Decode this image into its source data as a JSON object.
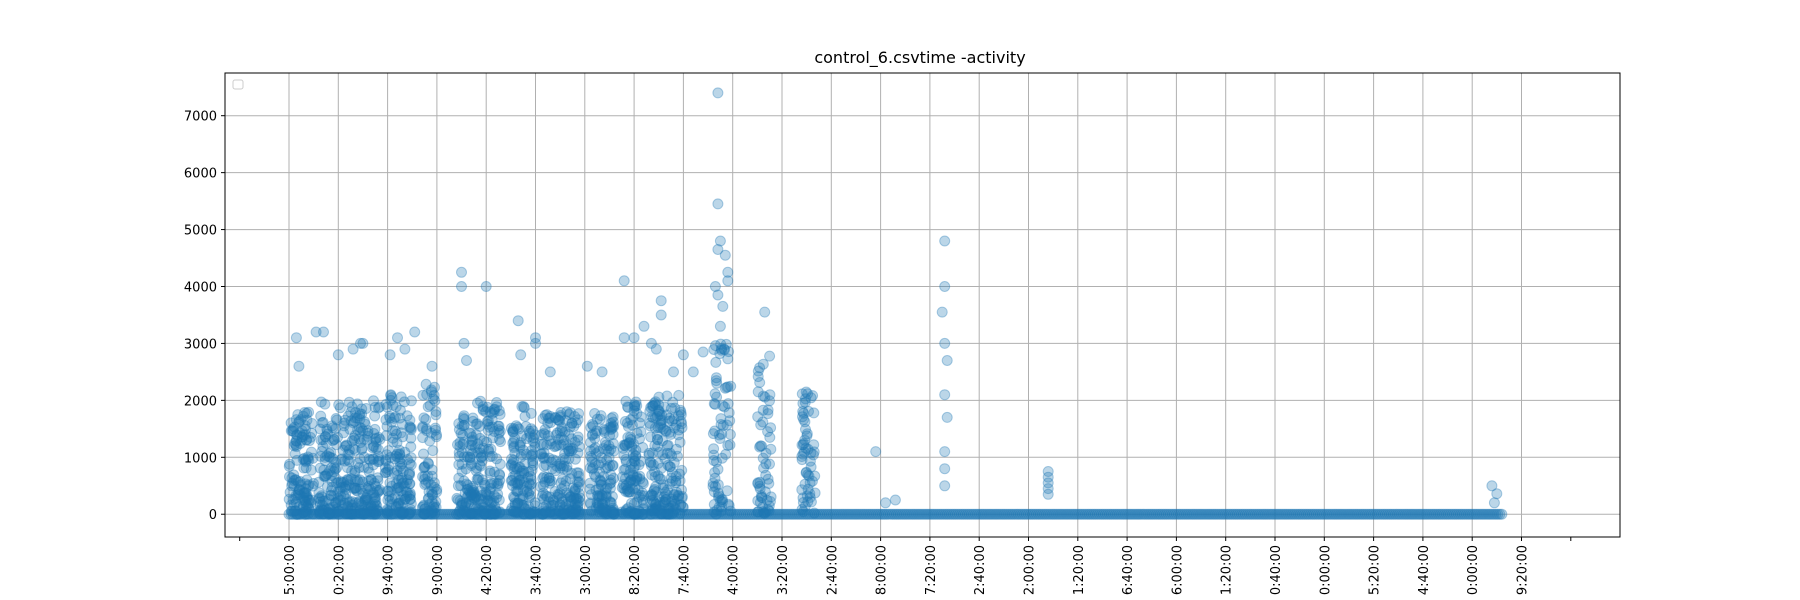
{
  "chart_data": {
    "type": "scatter",
    "title": "control_6.csvtime -activity",
    "xlabel": "",
    "ylabel": "",
    "ylim": [
      -400,
      7750
    ],
    "yticks": [
      0,
      1000,
      2000,
      3000,
      4000,
      5000,
      6000,
      7000
    ],
    "xticks": [
      "5:00:00",
      "0:20:00",
      "9:40:00",
      "9:00:00",
      "4:20:00",
      "3:40:00",
      "3:00:00",
      "8:20:00",
      "7:40:00",
      "4:00:00",
      "3:20:00",
      "2:40:00",
      "8:00:00",
      "7:20:00",
      "2:40:00",
      "2:00:00",
      "1:20:00",
      "6:40:00",
      "6:00:00",
      "1:20:00",
      "0:40:00",
      "0:00:00",
      "5:20:00",
      "4:40:00",
      "0:00:00",
      "9:20:00"
    ],
    "grid": true,
    "legend": "top-left (empty)",
    "series": [
      {
        "color": "#1f77b4",
        "alpha": 0.3,
        "dense_segments": [
          {
            "x_start": 1.0,
            "x_end": 1.5,
            "max": 1800
          },
          {
            "x_start": 1.6,
            "x_end": 2.85,
            "max": 2000
          },
          {
            "x_start": 2.95,
            "x_end": 3.5,
            "max": 2200
          },
          {
            "x_start": 3.7,
            "x_end": 4.0,
            "max": 2300
          },
          {
            "x_start": 4.4,
            "x_end": 4.8,
            "max": 2000
          },
          {
            "x_start": 4.8,
            "x_end": 5.3,
            "max": 2000
          },
          {
            "x_start": 5.5,
            "x_end": 6.0,
            "max": 1900
          },
          {
            "x_start": 6.1,
            "x_end": 6.9,
            "max": 1800
          },
          {
            "x_start": 7.1,
            "x_end": 7.6,
            "max": 1800
          },
          {
            "x_start": 7.75,
            "x_end": 8.2,
            "max": 2000
          },
          {
            "x_start": 8.3,
            "x_end": 9.0,
            "max": 2100
          }
        ],
        "outliers": [
          {
            "x": 1.15,
            "y": 3100
          },
          {
            "x": 1.2,
            "y": 2600
          },
          {
            "x": 1.55,
            "y": 3200
          },
          {
            "x": 1.7,
            "y": 3200
          },
          {
            "x": 2.0,
            "y": 2800
          },
          {
            "x": 2.3,
            "y": 2900
          },
          {
            "x": 2.5,
            "y": 3000
          },
          {
            "x": 2.45,
            "y": 3000
          },
          {
            "x": 3.05,
            "y": 2800
          },
          {
            "x": 3.2,
            "y": 3100
          },
          {
            "x": 3.35,
            "y": 2900
          },
          {
            "x": 3.55,
            "y": 3200
          },
          {
            "x": 3.9,
            "y": 2600
          },
          {
            "x": 4.5,
            "y": 4250
          },
          {
            "x": 4.5,
            "y": 4000
          },
          {
            "x": 4.55,
            "y": 3000
          },
          {
            "x": 4.6,
            "y": 2700
          },
          {
            "x": 5.0,
            "y": 4000
          },
          {
            "x": 5.65,
            "y": 3400
          },
          {
            "x": 5.7,
            "y": 2800
          },
          {
            "x": 6.0,
            "y": 3100
          },
          {
            "x": 6.0,
            "y": 3000
          },
          {
            "x": 6.3,
            "y": 2500
          },
          {
            "x": 7.05,
            "y": 2600
          },
          {
            "x": 7.35,
            "y": 2500
          },
          {
            "x": 7.8,
            "y": 4100
          },
          {
            "x": 7.8,
            "y": 3100
          },
          {
            "x": 8.0,
            "y": 3100
          },
          {
            "x": 8.2,
            "y": 3300
          },
          {
            "x": 8.35,
            "y": 3000
          },
          {
            "x": 8.45,
            "y": 2900
          },
          {
            "x": 8.55,
            "y": 3750
          },
          {
            "x": 8.55,
            "y": 3500
          },
          {
            "x": 8.8,
            "y": 2500
          },
          {
            "x": 9.0,
            "y": 2800
          },
          {
            "x": 9.2,
            "y": 2500
          },
          {
            "x": 9.4,
            "y": 2850
          }
        ],
        "sparse_segments": [
          {
            "x_start": 9.6,
            "x_end": 10.05,
            "max": 3000
          },
          {
            "x_start": 10.5,
            "x_end": 10.85,
            "max": 2800
          },
          {
            "x_start": 11.4,
            "x_end": 11.75,
            "max": 2200
          }
        ],
        "spike_points": [
          {
            "x": 9.7,
            "y": 7400
          },
          {
            "x": 9.7,
            "y": 5450
          },
          {
            "x": 9.75,
            "y": 4800
          },
          {
            "x": 9.7,
            "y": 4650
          },
          {
            "x": 9.85,
            "y": 4550
          },
          {
            "x": 9.9,
            "y": 4250
          },
          {
            "x": 9.9,
            "y": 4100
          },
          {
            "x": 9.65,
            "y": 4000
          },
          {
            "x": 9.7,
            "y": 3850
          },
          {
            "x": 9.8,
            "y": 3650
          },
          {
            "x": 10.65,
            "y": 3550
          },
          {
            "x": 9.75,
            "y": 3300
          },
          {
            "x": 12.9,
            "y": 1100
          },
          {
            "x": 13.1,
            "y": 200
          },
          {
            "x": 13.3,
            "y": 250
          },
          {
            "x": 14.3,
            "y": 4800
          },
          {
            "x": 14.3,
            "y": 4000
          },
          {
            "x": 14.25,
            "y": 3550
          },
          {
            "x": 14.3,
            "y": 3000
          },
          {
            "x": 14.35,
            "y": 2700
          },
          {
            "x": 14.3,
            "y": 2100
          },
          {
            "x": 14.35,
            "y": 1700
          },
          {
            "x": 14.3,
            "y": 1100
          },
          {
            "x": 14.3,
            "y": 800
          },
          {
            "x": 14.3,
            "y": 500
          },
          {
            "x": 16.4,
            "y": 750
          },
          {
            "x": 16.4,
            "y": 650
          },
          {
            "x": 16.4,
            "y": 550
          },
          {
            "x": 16.4,
            "y": 450
          },
          {
            "x": 16.4,
            "y": 350
          },
          {
            "x": 25.4,
            "y": 500
          },
          {
            "x": 25.5,
            "y": 360
          },
          {
            "x": 25.45,
            "y": 200
          }
        ],
        "baseline": {
          "x_start": 1.0,
          "x_end": 25.6,
          "y": 0
        }
      }
    ]
  }
}
